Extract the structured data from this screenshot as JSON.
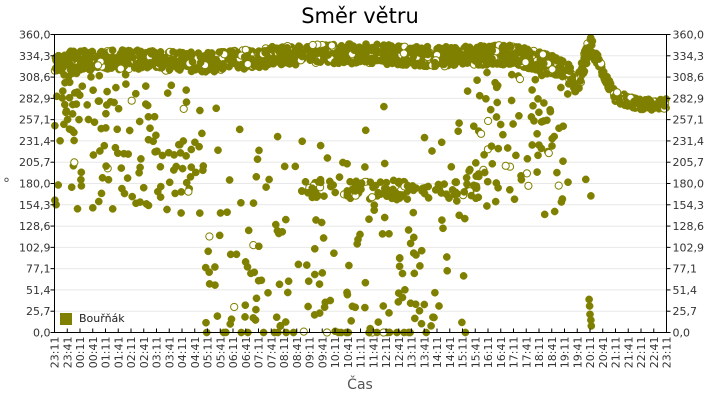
{
  "chart_data": {
    "type": "scatter",
    "title": "Směr větru",
    "xlabel": "Čas",
    "ylabel": "°",
    "ylim": [
      0,
      360
    ],
    "yticks": [
      "0,0",
      "25,7",
      "51,4",
      "77,1",
      "102,9",
      "128,6",
      "154,3",
      "180,0",
      "205,7",
      "231,4",
      "257,1",
      "282,9",
      "308,6",
      "334,3",
      "360,0"
    ],
    "xticks": [
      "23:11",
      "23:41",
      "00:11",
      "00:41",
      "01:11",
      "01:41",
      "02:11",
      "02:41",
      "03:11",
      "03:41",
      "04:11",
      "04:41",
      "05:11",
      "05:41",
      "06:11",
      "06:41",
      "07:11",
      "07:41",
      "08:11",
      "08:41",
      "09:11",
      "09:41",
      "10:11",
      "10:41",
      "11:11",
      "11:41",
      "12:11",
      "12:41",
      "13:11",
      "13:41",
      "14:11",
      "14:41",
      "15:11",
      "15:41",
      "16:11",
      "16:41",
      "17:11",
      "17:41",
      "18:11",
      "18:41",
      "19:11",
      "19:41",
      "20:11",
      "20:41",
      "21:11",
      "21:41",
      "22:11",
      "22:41",
      "23:11"
    ],
    "grid": true,
    "legend_position": "inside-bottom-left",
    "series": [
      {
        "name": "Bouřňák",
        "color": "#808000",
        "description": "Dense band of wind direction readings around 310-350° from 23:11 to ~20:11, widely scattered values (0-300°) between ~08:00 and ~16:00, brief spike near 350° at ~20:11, then settling around 265-285° until 23:11.",
        "band_profile": [
          {
            "time": "23:11",
            "center": 328
          },
          {
            "time": "02:11",
            "center": 330
          },
          {
            "time": "05:11",
            "center": 326
          },
          {
            "time": "08:11",
            "center": 335
          },
          {
            "time": "11:11",
            "center": 337
          },
          {
            "time": "14:11",
            "center": 333
          },
          {
            "time": "17:11",
            "center": 336
          },
          {
            "time": "19:11",
            "center": 318
          },
          {
            "time": "19:41",
            "center": 300
          },
          {
            "time": "20:11",
            "center": 348
          },
          {
            "time": "20:41",
            "center": 315
          },
          {
            "time": "21:11",
            "center": 285
          },
          {
            "time": "22:11",
            "center": 275
          },
          {
            "time": "23:11",
            "center": 276
          }
        ]
      }
    ]
  },
  "legend": {
    "label": "Bouřňák",
    "color": "#808000"
  }
}
